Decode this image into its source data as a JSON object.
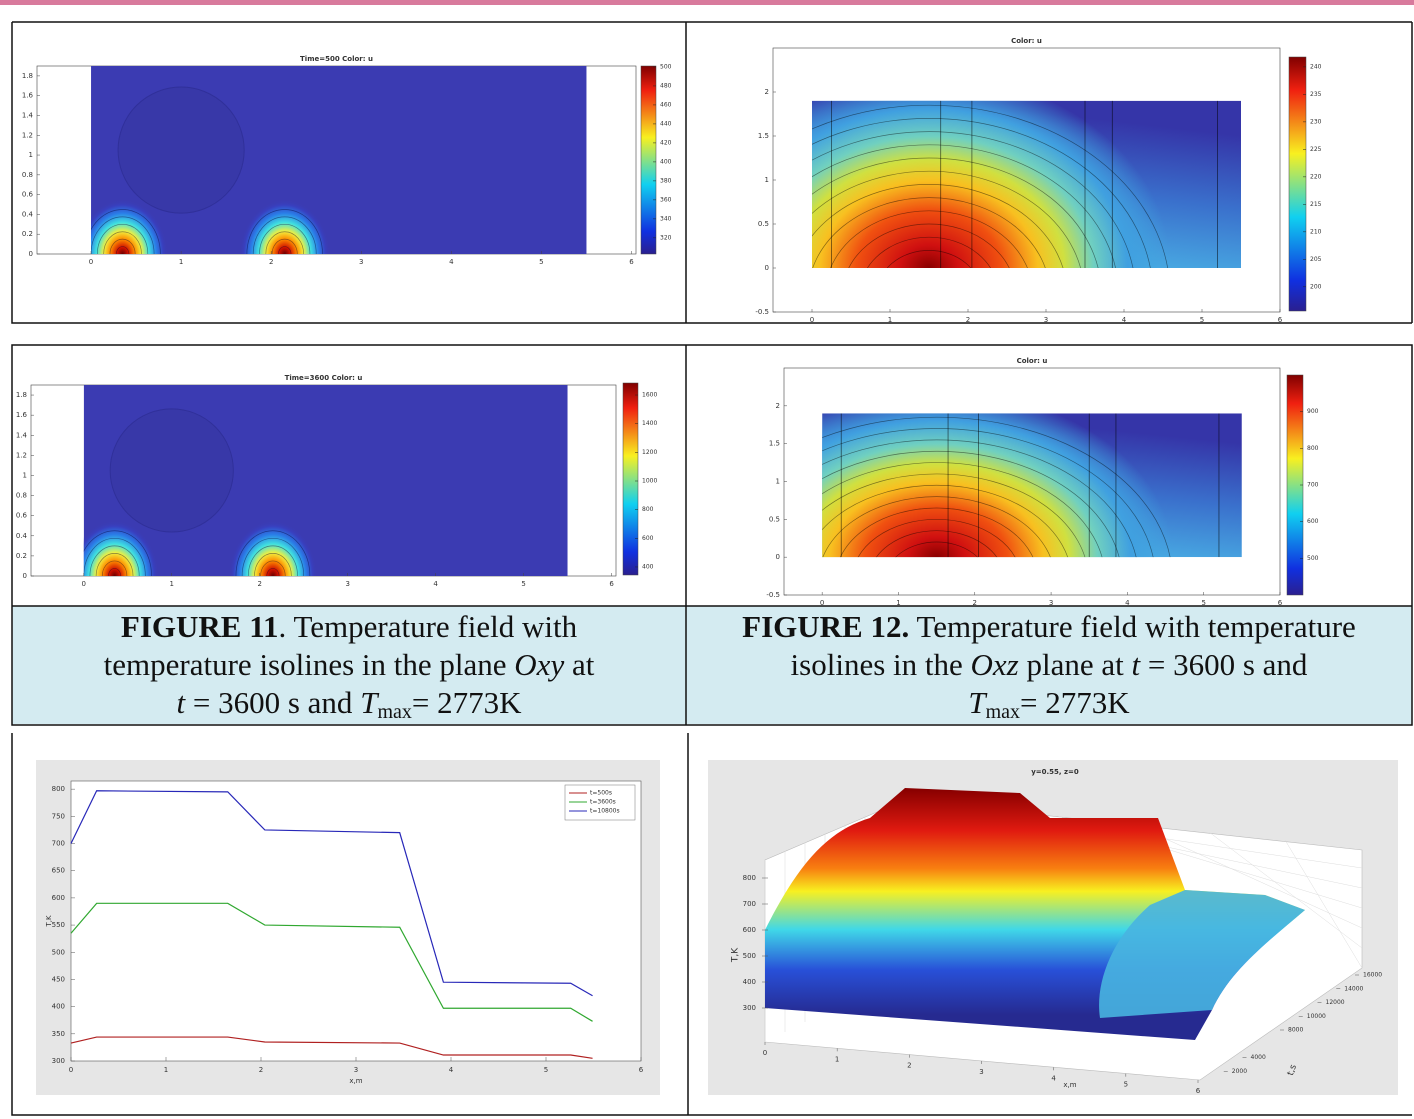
{
  "chart_data": [
    {
      "type": "heatmap",
      "title": "Time=500  Color: u",
      "xlim": [
        -0.6,
        6.05
      ],
      "ylim": [
        0,
        1.9
      ],
      "xticks": [
        0,
        1,
        2,
        3,
        4,
        5,
        6
      ],
      "yticks": [
        0,
        0.2,
        0.4,
        0.6,
        0.8,
        1,
        1.2,
        1.4,
        1.6,
        1.8
      ],
      "clim": [
        303,
        501
      ],
      "cticks": [
        320,
        340,
        360,
        380,
        400,
        420,
        440,
        460,
        480,
        500
      ]
    },
    {
      "type": "heatmap",
      "title": "Color: u",
      "xlim": [
        -0.5,
        6
      ],
      "ylim": [
        -0.5,
        2.5
      ],
      "xticks": [
        0,
        1,
        2,
        3,
        4,
        5,
        6
      ],
      "yticks": [
        -0.5,
        0,
        0.5,
        1,
        1.5,
        2
      ],
      "clim": [
        195.6,
        241.8
      ],
      "cticks": [
        200,
        205,
        210,
        215,
        220,
        225,
        230,
        235,
        240
      ]
    },
    {
      "type": "heatmap",
      "title": "Time=3600  Color: u",
      "xlim": [
        -0.6,
        6.05
      ],
      "ylim": [
        0,
        1.9
      ],
      "xticks": [
        0,
        1,
        2,
        3,
        4,
        5,
        6
      ],
      "yticks": [
        0,
        0.2,
        0.4,
        0.6,
        0.8,
        1,
        1.2,
        1.4,
        1.6,
        1.8
      ],
      "clim": [
        344,
        1684
      ],
      "cticks": [
        400,
        600,
        800,
        1000,
        1200,
        1400,
        1600
      ]
    },
    {
      "type": "heatmap",
      "title": "Color: u",
      "xlim": [
        -0.5,
        6
      ],
      "ylim": [
        -0.5,
        2.5
      ],
      "xticks": [
        0,
        1,
        2,
        3,
        4,
        5,
        6
      ],
      "yticks": [
        -0.5,
        0,
        0.5,
        1,
        1.5,
        2
      ],
      "clim": [
        400,
        1000
      ],
      "cticks": [
        500,
        600,
        700,
        800,
        900
      ]
    },
    {
      "type": "line",
      "xlabel": "x,m",
      "ylabel": "T,K",
      "xlim": [
        0,
        6
      ],
      "ylim": [
        300,
        815
      ],
      "xticks": [
        0,
        1,
        2,
        3,
        4,
        5,
        6
      ],
      "yticks": [
        300,
        350,
        400,
        450,
        500,
        550,
        600,
        650,
        700,
        750,
        800
      ],
      "x": [
        0,
        0.27,
        1.65,
        2.04,
        3.46,
        3.92,
        5.26,
        5.49
      ],
      "series": [
        {
          "name": "t=500s",
          "color": "#b02020",
          "values": [
            333,
            344,
            344,
            335,
            333,
            311,
            311,
            305
          ]
        },
        {
          "name": "t=3600s",
          "color": "#30a830",
          "values": [
            535,
            590,
            590,
            550,
            546,
            397,
            397,
            373
          ]
        },
        {
          "name": "t=10800s",
          "color": "#2828b8",
          "values": [
            700,
            797,
            795,
            725,
            720,
            445,
            443,
            420
          ]
        }
      ]
    },
    {
      "type": "surface",
      "title": "y=0.55, z=0",
      "xlabel": "x,m",
      "ylabel": "T,K",
      "zlabel": "t,s",
      "xlim": [
        0,
        6
      ],
      "xticks": [
        0,
        1,
        2,
        3,
        4,
        5,
        6
      ],
      "ylim": [
        300,
        800
      ],
      "yticks": [
        300,
        400,
        500,
        600,
        700,
        800
      ],
      "zlim": [
        0,
        16000
      ],
      "zticks": [
        2000,
        4000,
        8000,
        10000,
        12000,
        14000,
        16000
      ]
    }
  ],
  "captions": [
    {
      "parts": [
        "FIGURE 11",
        ". Temperature field with",
        "temperature isolines in the plane ",
        "Oxy",
        " at",
        "t",
        " = 3600 s and ",
        "T",
        "max",
        "= 2773K"
      ]
    },
    {
      "parts": [
        "FIGURE 12.",
        " Temperature field with temperature",
        "isolines in the ",
        "Oxz",
        " plane at ",
        "t",
        " = 3600 s and",
        "T",
        "max",
        "= 2773K"
      ]
    }
  ]
}
